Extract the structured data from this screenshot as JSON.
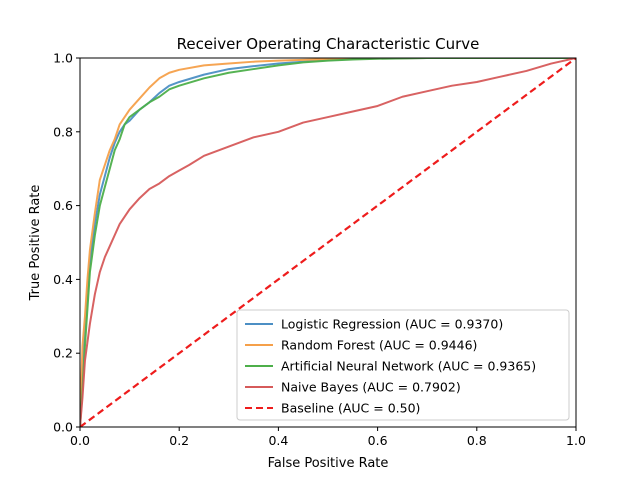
{
  "chart_data": {
    "type": "line",
    "title": "Receiver Operating Characteristic Curve",
    "xlabel": "False Positive Rate",
    "ylabel": "True Positive Rate",
    "xlim": [
      0,
      1
    ],
    "ylim": [
      0,
      1
    ],
    "xticks": [
      "0.0",
      "0.2",
      "0.4",
      "0.6",
      "0.8",
      "1.0"
    ],
    "yticks": [
      "0.0",
      "0.2",
      "0.4",
      "0.6",
      "0.8",
      "1.0"
    ],
    "grid": false,
    "legend_position": "lower-right",
    "series": [
      {
        "name": "Logistic Regression (AUC = 0.9370)",
        "color": "#4c8fc4",
        "dash": "solid",
        "x": [
          0,
          0.005,
          0.01,
          0.015,
          0.02,
          0.03,
          0.04,
          0.05,
          0.06,
          0.07,
          0.08,
          0.09,
          0.1,
          0.12,
          0.14,
          0.16,
          0.18,
          0.2,
          0.25,
          0.3,
          0.35,
          0.4,
          0.45,
          0.5,
          0.55,
          0.56,
          0.6,
          0.7,
          0.8,
          0.9,
          1.0
        ],
        "y": [
          0,
          0.15,
          0.27,
          0.37,
          0.45,
          0.55,
          0.63,
          0.68,
          0.73,
          0.77,
          0.8,
          0.82,
          0.83,
          0.86,
          0.88,
          0.905,
          0.925,
          0.935,
          0.955,
          0.97,
          0.978,
          0.985,
          0.99,
          0.994,
          0.997,
          0.998,
          0.999,
          1.0,
          1.0,
          1.0,
          1.0
        ]
      },
      {
        "name": "Random Forest (AUC = 0.9446)",
        "color": "#f5a04a",
        "dash": "solid",
        "x": [
          0,
          0.005,
          0.01,
          0.015,
          0.02,
          0.03,
          0.04,
          0.05,
          0.06,
          0.07,
          0.08,
          0.09,
          0.1,
          0.12,
          0.14,
          0.16,
          0.18,
          0.2,
          0.25,
          0.3,
          0.35,
          0.4,
          0.45,
          0.5,
          0.6,
          0.7,
          0.8,
          0.9,
          1.0
        ],
        "y": [
          0,
          0.22,
          0.3,
          0.4,
          0.48,
          0.58,
          0.67,
          0.71,
          0.75,
          0.78,
          0.82,
          0.84,
          0.86,
          0.89,
          0.92,
          0.945,
          0.96,
          0.968,
          0.98,
          0.985,
          0.99,
          0.993,
          0.995,
          0.997,
          0.999,
          1.0,
          1.0,
          1.0,
          1.0
        ]
      },
      {
        "name": "Artificial Neural Network (AUC = 0.9365)",
        "color": "#4daf4a",
        "dash": "solid",
        "x": [
          0,
          0.005,
          0.01,
          0.015,
          0.02,
          0.03,
          0.04,
          0.05,
          0.06,
          0.07,
          0.08,
          0.09,
          0.1,
          0.12,
          0.14,
          0.16,
          0.18,
          0.2,
          0.25,
          0.3,
          0.35,
          0.4,
          0.45,
          0.5,
          0.55,
          0.6,
          0.7,
          0.8,
          0.9,
          1.0
        ],
        "y": [
          0,
          0.1,
          0.22,
          0.32,
          0.42,
          0.52,
          0.6,
          0.65,
          0.7,
          0.75,
          0.78,
          0.82,
          0.84,
          0.86,
          0.88,
          0.895,
          0.915,
          0.925,
          0.945,
          0.96,
          0.97,
          0.98,
          0.988,
          0.993,
          0.996,
          0.998,
          1.0,
          1.0,
          1.0,
          1.0
        ]
      },
      {
        "name": "Naive Bayes (AUC = 0.7902)",
        "color": "#d65a5a",
        "dash": "solid",
        "x": [
          0,
          0.005,
          0.01,
          0.02,
          0.03,
          0.04,
          0.05,
          0.06,
          0.07,
          0.08,
          0.09,
          0.1,
          0.12,
          0.14,
          0.16,
          0.18,
          0.2,
          0.22,
          0.25,
          0.3,
          0.35,
          0.4,
          0.45,
          0.5,
          0.55,
          0.6,
          0.65,
          0.7,
          0.75,
          0.8,
          0.85,
          0.9,
          0.95,
          1.0
        ],
        "y": [
          0,
          0.08,
          0.18,
          0.28,
          0.36,
          0.42,
          0.46,
          0.49,
          0.52,
          0.55,
          0.57,
          0.59,
          0.62,
          0.645,
          0.66,
          0.68,
          0.695,
          0.71,
          0.735,
          0.76,
          0.785,
          0.8,
          0.825,
          0.84,
          0.855,
          0.87,
          0.895,
          0.91,
          0.925,
          0.935,
          0.95,
          0.965,
          0.985,
          1.0
        ]
      },
      {
        "name": "Baseline (AUC = 0.50)",
        "color": "#ee1c1c",
        "dash": "dashed",
        "x": [
          0,
          1
        ],
        "y": [
          0,
          1
        ]
      }
    ]
  }
}
